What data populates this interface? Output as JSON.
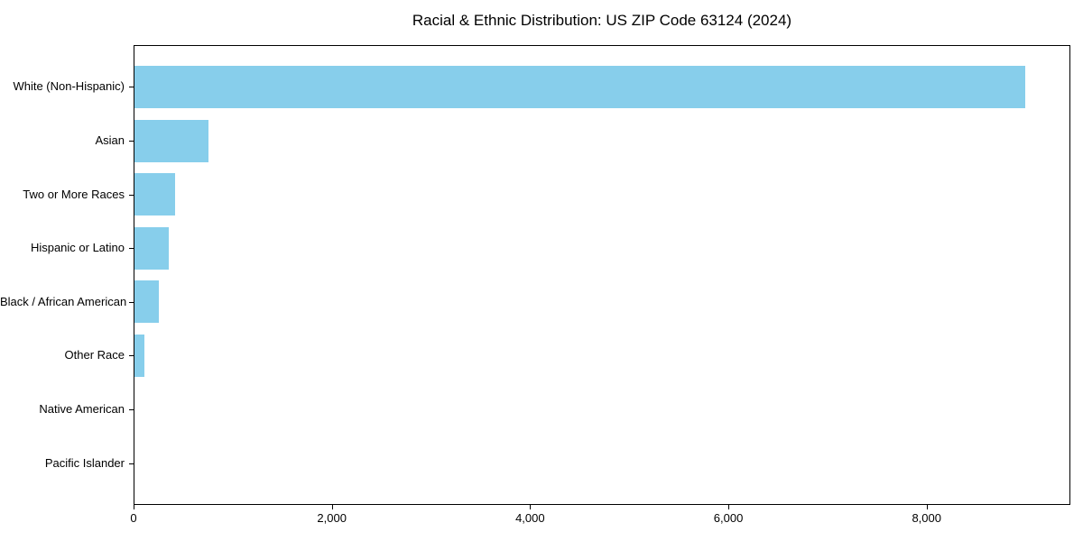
{
  "chart_data": {
    "type": "bar",
    "orientation": "horizontal",
    "title": "Racial & Ethnic Distribution: US ZIP Code 63124 (2024)",
    "categories": [
      "White (Non-Hispanic)",
      "Asian",
      "Two or More Races",
      "Hispanic or Latino",
      "Black / African American",
      "Other Race",
      "Native American",
      "Pacific Islander"
    ],
    "values": [
      9000,
      745,
      410,
      350,
      250,
      100,
      0,
      0
    ],
    "xlabel": "",
    "ylabel": "",
    "xlim": [
      0,
      9450
    ],
    "xticks": [
      {
        "value": 0,
        "label": "0"
      },
      {
        "value": 2000,
        "label": "2,000"
      },
      {
        "value": 4000,
        "label": "4,000"
      },
      {
        "value": 6000,
        "label": "6,000"
      },
      {
        "value": 8000,
        "label": "8,000"
      }
    ],
    "grid": false,
    "legend": null,
    "bar_color": "#87CEEB",
    "axis_color": "#000000",
    "text_color": "#000000",
    "background_color": "#ffffff"
  }
}
